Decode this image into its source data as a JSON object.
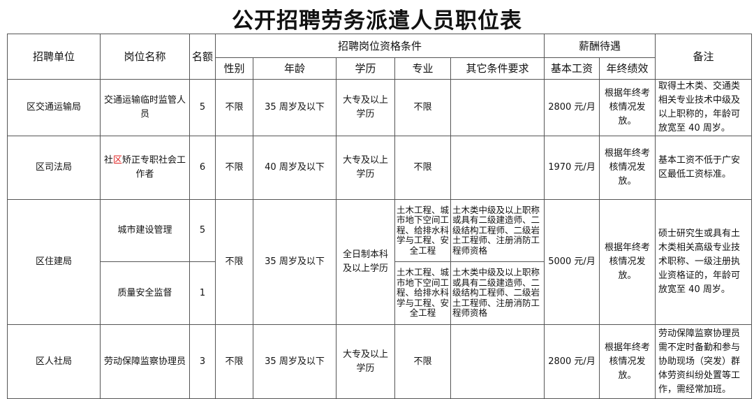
{
  "title": "公开招聘劳务派遣人员职位表",
  "headers": {
    "unit": "招聘单位",
    "post": "岗位名称",
    "quota": "名额",
    "conditions": "招聘岗位资格条件",
    "gender": "性别",
    "age": "年龄",
    "edu": "学历",
    "major": "专业",
    "other": "其它条件要求",
    "salary": "薪酬待遇",
    "base": "基本工资",
    "bonus": "年终绩效",
    "note": "备注"
  },
  "rows": [
    {
      "unit": "区交通运输局",
      "post": "交通运输临时监管人员",
      "quota": "5",
      "gender": "不限",
      "age": "35 周岁及以下",
      "edu": "大专及以上学历",
      "major": "不限",
      "other": "",
      "base": "2800 元/月",
      "bonus": "根据年终考核情况发放。",
      "note": "取得土木类、交通类相关专业技术中级及以上职称的，年龄可放宽至 40 周岁。"
    },
    {
      "unit": "区司法局",
      "post_a": "社",
      "post_red": "区",
      "post_b": "矫正专职社会工作者",
      "quota": "6",
      "gender": "不限",
      "age": "40 周岁及以下",
      "edu": "大专及以上学历",
      "major": "不限",
      "other": "",
      "base": "1970 元/月",
      "bonus": "根据年终考核情况发放。",
      "note": "基本工资不低于广安区最低工资标准。"
    },
    {
      "unit": "区住建局",
      "post1": "城市建设管理",
      "quota1": "5",
      "post2": "质量安全监督",
      "quota2": "1",
      "gender": "不限",
      "age": "35 周岁及以下",
      "edu": "全日制本科及以上学历",
      "major": "土木工程、城市地下空间工程、给排水科学与工程、安全工程",
      "other": "土木类中级及以上职称或具有二级建造师、二级结构工程师、二级岩土工程师、注册消防工程师资格",
      "base": "5000 元/月",
      "bonus": "根据年终考核情况发放。",
      "note": "硕士研究生或具有土木类相关高级专业技术职称、一级注册执业资格证的，年龄可放宽至 40 周岁。"
    },
    {
      "unit": "区人社局",
      "post": "劳动保障监察协理员",
      "quota": "3",
      "gender": "不限",
      "age": "35 周岁及以下",
      "edu": "大专及以上学历",
      "major": "不限",
      "other": "",
      "base": "2800 元/月",
      "bonus": "根据年终考核情况发放。",
      "note": "劳动保障监察协理员需不定时备勤和参与协助现场（突发）群体劳资纠纷处置等工作，需经常加班。"
    }
  ]
}
